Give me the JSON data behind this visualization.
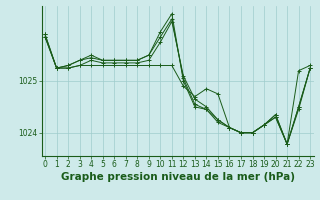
{
  "background_color": "#ceeaea",
  "grid_color": "#a0cccc",
  "line_color": "#1a5c1a",
  "title": "Graphe pression niveau de la mer (hPa)",
  "ylabel_ticks": [
    1024,
    1025
  ],
  "xlim": [
    -0.3,
    23.3
  ],
  "ylim": [
    1023.55,
    1026.45
  ],
  "series": [
    [
      1025.85,
      1025.25,
      1025.25,
      1025.3,
      1025.3,
      1025.3,
      1025.3,
      1025.3,
      1025.3,
      1025.3,
      1025.3,
      1025.3,
      1024.9,
      1024.7,
      1024.85,
      1024.75,
      1024.1,
      1024.0,
      1024.0,
      1024.15,
      1024.35,
      1023.78,
      1025.2,
      1025.3
    ],
    [
      1025.9,
      1025.25,
      1025.3,
      1025.4,
      1025.45,
      1025.4,
      1025.4,
      1025.4,
      1025.4,
      1025.5,
      1025.85,
      1026.2,
      1025.05,
      1024.55,
      1024.45,
      1024.25,
      1024.1,
      1024.0,
      1024.0,
      1024.15,
      1024.35,
      1023.78,
      1024.5,
      1025.25
    ],
    [
      1025.9,
      1025.25,
      1025.3,
      1025.4,
      1025.5,
      1025.4,
      1025.4,
      1025.4,
      1025.4,
      1025.5,
      1025.95,
      1026.3,
      1025.0,
      1024.5,
      1024.45,
      1024.2,
      1024.1,
      1024.0,
      1024.0,
      1024.15,
      1024.3,
      1023.78,
      1024.45,
      1025.25
    ],
    [
      1025.85,
      1025.25,
      1025.25,
      1025.3,
      1025.4,
      1025.35,
      1025.35,
      1025.35,
      1025.35,
      1025.4,
      1025.75,
      1026.15,
      1025.1,
      1024.65,
      1024.5,
      1024.25,
      1024.1,
      1024.0,
      1024.0,
      1024.15,
      1024.3,
      1023.78,
      1024.5,
      1025.25
    ]
  ],
  "xtick_labels": [
    "0",
    "1",
    "2",
    "3",
    "4",
    "5",
    "6",
    "7",
    "8",
    "9",
    "10",
    "11",
    "12",
    "13",
    "14",
    "15",
    "16",
    "17",
    "18",
    "19",
    "20",
    "21",
    "22",
    "23"
  ],
  "title_fontsize": 7.5,
  "tick_fontsize": 5.5,
  "figsize": [
    3.2,
    2.0
  ],
  "dpi": 100
}
